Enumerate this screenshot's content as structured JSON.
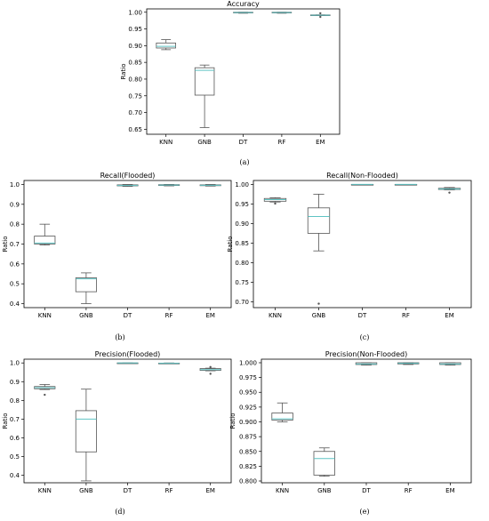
{
  "chart_data": [
    {
      "id": "a",
      "type": "box",
      "title": "Accuracy",
      "ylabel": "Ratio",
      "caption": "(a)",
      "categories": [
        "KNN",
        "GNB",
        "DT",
        "RF",
        "EM"
      ],
      "ylim": [
        0.635,
        1.01
      ],
      "yticks": [
        0.65,
        0.7,
        0.75,
        0.8,
        0.85,
        0.9,
        0.95,
        1.0
      ],
      "ytick_labels": [
        "0.65",
        "0.70",
        "0.75",
        "0.80",
        "0.85",
        "0.90",
        "0.95",
        "1.00"
      ],
      "boxes": [
        {
          "whislo": 0.888,
          "q1": 0.893,
          "med": 0.898,
          "q3": 0.908,
          "whishi": 0.918,
          "fliers": []
        },
        {
          "whislo": 0.655,
          "q1": 0.752,
          "med": 0.826,
          "q3": 0.834,
          "whishi": 0.842,
          "fliers": []
        },
        {
          "whislo": 0.997,
          "q1": 0.998,
          "med": 0.999,
          "q3": 1.0,
          "whishi": 1.0,
          "fliers": []
        },
        {
          "whislo": 0.997,
          "q1": 0.998,
          "med": 0.999,
          "q3": 1.0,
          "whishi": 1.0,
          "fliers": []
        },
        {
          "whislo": 0.99,
          "q1": 0.99,
          "med": 0.991,
          "q3": 0.992,
          "whishi": 0.992,
          "fliers": [
            0.997,
            0.986
          ]
        }
      ]
    },
    {
      "id": "b",
      "type": "box",
      "title": "Recall(Flooded)",
      "ylabel": "Ratio",
      "caption": "(b)",
      "categories": [
        "KNN",
        "GNB",
        "DT",
        "RF",
        "EM"
      ],
      "ylim": [
        0.38,
        1.02
      ],
      "yticks": [
        0.4,
        0.5,
        0.6,
        0.7,
        0.8,
        0.9,
        1.0
      ],
      "ytick_labels": [
        "0.4",
        "0.5",
        "0.6",
        "0.7",
        "0.8",
        "0.9",
        "1.0"
      ],
      "boxes": [
        {
          "whislo": 0.695,
          "q1": 0.7,
          "med": 0.705,
          "q3": 0.74,
          "whishi": 0.8,
          "fliers": []
        },
        {
          "whislo": 0.4,
          "q1": 0.46,
          "med": 0.525,
          "q3": 0.53,
          "whishi": 0.555,
          "fliers": []
        },
        {
          "whislo": 0.99,
          "q1": 0.993,
          "med": 0.995,
          "q3": 0.998,
          "whishi": 1.0,
          "fliers": []
        },
        {
          "whislo": 0.993,
          "q1": 0.995,
          "med": 0.997,
          "q3": 0.999,
          "whishi": 1.0,
          "fliers": []
        },
        {
          "whislo": 0.992,
          "q1": 0.994,
          "med": 0.996,
          "q3": 0.998,
          "whishi": 1.0,
          "fliers": []
        }
      ]
    },
    {
      "id": "c",
      "type": "box",
      "title": "Recall(Non-Flooded)",
      "ylabel": "Ratio",
      "caption": "(c)",
      "categories": [
        "KNN",
        "GNB",
        "DT",
        "RF",
        "EM"
      ],
      "ylim": [
        0.685,
        1.01
      ],
      "yticks": [
        0.7,
        0.75,
        0.8,
        0.85,
        0.9,
        0.95,
        1.0
      ],
      "ytick_labels": [
        "0.70",
        "0.75",
        "0.80",
        "0.85",
        "0.90",
        "0.95",
        "1.00"
      ],
      "boxes": [
        {
          "whislo": 0.955,
          "q1": 0.957,
          "med": 0.961,
          "q3": 0.964,
          "whishi": 0.966,
          "fliers": [
            0.951
          ]
        },
        {
          "whislo": 0.83,
          "q1": 0.875,
          "med": 0.918,
          "q3": 0.94,
          "whishi": 0.975,
          "fliers": [
            0.695
          ]
        },
        {
          "whislo": 0.999,
          "q1": 0.999,
          "med": 1.0,
          "q3": 1.0,
          "whishi": 1.0,
          "fliers": []
        },
        {
          "whislo": 0.999,
          "q1": 0.999,
          "med": 1.0,
          "q3": 1.0,
          "whishi": 1.0,
          "fliers": []
        },
        {
          "whislo": 0.986,
          "q1": 0.987,
          "med": 0.988,
          "q3": 0.99,
          "whishi": 0.992,
          "fliers": [
            0.979
          ]
        }
      ]
    },
    {
      "id": "d",
      "type": "box",
      "title": "Precision(Flooded)",
      "ylabel": "Ratio",
      "caption": "(d)",
      "categories": [
        "KNN",
        "GNB",
        "DT",
        "RF",
        "EM"
      ],
      "ylim": [
        0.36,
        1.02
      ],
      "yticks": [
        0.4,
        0.5,
        0.6,
        0.7,
        0.8,
        0.9,
        1.0
      ],
      "ytick_labels": [
        "0.4",
        "0.5",
        "0.6",
        "0.7",
        "0.8",
        "0.9",
        "1.0"
      ],
      "boxes": [
        {
          "whislo": 0.858,
          "q1": 0.862,
          "med": 0.868,
          "q3": 0.874,
          "whishi": 0.885,
          "fliers": [
            0.83
          ]
        },
        {
          "whislo": 0.37,
          "q1": 0.525,
          "med": 0.7,
          "q3": 0.745,
          "whishi": 0.86,
          "fliers": []
        },
        {
          "whislo": 0.999,
          "q1": 0.999,
          "med": 1.0,
          "q3": 1.0,
          "whishi": 1.0,
          "fliers": []
        },
        {
          "whislo": 0.996,
          "q1": 0.997,
          "med": 0.998,
          "q3": 0.999,
          "whishi": 1.0,
          "fliers": []
        },
        {
          "whislo": 0.958,
          "q1": 0.96,
          "med": 0.964,
          "q3": 0.97,
          "whishi": 0.972,
          "fliers": [
            0.978,
            0.942
          ]
        }
      ]
    },
    {
      "id": "e",
      "type": "box",
      "title": "Precision(Non-Flooded)",
      "ylabel": "Ratio",
      "caption": "(e)",
      "categories": [
        "KNN",
        "GNB",
        "DT",
        "RF",
        "EM"
      ],
      "ylim": [
        0.797,
        1.006
      ],
      "yticks": [
        0.8,
        0.825,
        0.85,
        0.875,
        0.9,
        0.925,
        0.95,
        0.975,
        1.0
      ],
      "ytick_labels": [
        "0.800",
        "0.825",
        "0.850",
        "0.875",
        "0.900",
        "0.925",
        "0.950",
        "0.975",
        "1.000"
      ],
      "boxes": [
        {
          "whislo": 0.9,
          "q1": 0.903,
          "med": 0.905,
          "q3": 0.915,
          "whishi": 0.932,
          "fliers": []
        },
        {
          "whislo": 0.808,
          "q1": 0.81,
          "med": 0.838,
          "q3": 0.85,
          "whishi": 0.856,
          "fliers": []
        },
        {
          "whislo": 0.996,
          "q1": 0.997,
          "med": 0.998,
          "q3": 1.0,
          "whishi": 1.0,
          "fliers": []
        },
        {
          "whislo": 0.997,
          "q1": 0.998,
          "med": 0.999,
          "q3": 1.0,
          "whishi": 1.0,
          "fliers": []
        },
        {
          "whislo": 0.996,
          "q1": 0.997,
          "med": 0.998,
          "q3": 1.0,
          "whishi": 1.0,
          "fliers": []
        }
      ]
    }
  ],
  "colors": {
    "box": "#555555",
    "median": "#5fc4c4",
    "axis": "#000000",
    "flier": "#555555"
  }
}
